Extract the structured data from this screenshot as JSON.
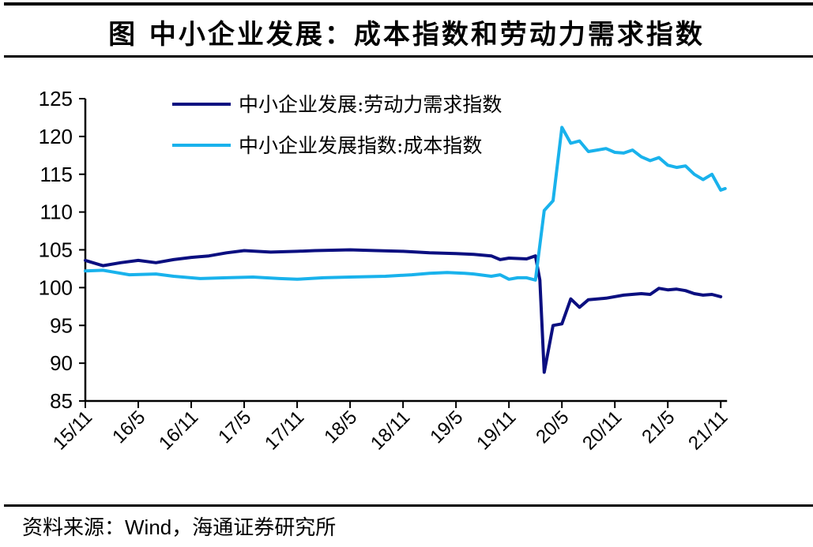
{
  "header": {
    "title": "图  中小企业发展：成本指数和劳动力需求指数"
  },
  "footer": {
    "source_prefix": "资料来源：",
    "source_en": "Wind",
    "source_suffix": "，海通证券研究所"
  },
  "colors": {
    "labor_demand": "#0b0f80",
    "cost": "#19b2ec",
    "axis": "#000000"
  },
  "chart_data": {
    "type": "line",
    "title": "中小企业发展：成本指数和劳动力需求指数",
    "xlabel": "",
    "ylabel": "",
    "ylim": [
      85,
      125
    ],
    "yticks": [
      85,
      90,
      95,
      100,
      105,
      110,
      115,
      120,
      125
    ],
    "x_tick_labels": [
      "15/11",
      "16/5",
      "16/11",
      "17/5",
      "17/11",
      "18/5",
      "18/11",
      "19/5",
      "19/11",
      "20/5",
      "20/11",
      "21/5",
      "21/11"
    ],
    "x_unit": "months since 2015-11 (0 = 15/11, 72 = 21/11)",
    "grid": false,
    "legend_position": "top-left inside",
    "series": [
      {
        "name": "中小企业发展:劳动力需求指数",
        "color": "#0b0f80",
        "points": [
          [
            0,
            103.6
          ],
          [
            2,
            102.9
          ],
          [
            4,
            103.3
          ],
          [
            6,
            103.6
          ],
          [
            8,
            103.3
          ],
          [
            10,
            103.7
          ],
          [
            12,
            104.0
          ],
          [
            14,
            104.2
          ],
          [
            16,
            104.6
          ],
          [
            18,
            104.9
          ],
          [
            21,
            104.7
          ],
          [
            24,
            104.8
          ],
          [
            26,
            104.9
          ],
          [
            30,
            105.0
          ],
          [
            33,
            104.9
          ],
          [
            36,
            104.8
          ],
          [
            39,
            104.6
          ],
          [
            42,
            104.5
          ],
          [
            44,
            104.4
          ],
          [
            46,
            104.2
          ],
          [
            47,
            103.7
          ],
          [
            48,
            103.9
          ],
          [
            50,
            103.8
          ],
          [
            51,
            104.2
          ],
          [
            51.5,
            101.0
          ],
          [
            52,
            88.8
          ],
          [
            53,
            95.0
          ],
          [
            54,
            95.2
          ],
          [
            55,
            98.5
          ],
          [
            56,
            97.4
          ],
          [
            57,
            98.4
          ],
          [
            59,
            98.6
          ],
          [
            61,
            99.0
          ],
          [
            63,
            99.2
          ],
          [
            64,
            99.1
          ],
          [
            65,
            99.9
          ],
          [
            66,
            99.7
          ],
          [
            67,
            99.8
          ],
          [
            68,
            99.6
          ],
          [
            69,
            99.2
          ],
          [
            70,
            99.0
          ],
          [
            71,
            99.1
          ],
          [
            72,
            98.8
          ]
        ]
      },
      {
        "name": "中小企业发展指数:成本指数",
        "color": "#19b2ec",
        "points": [
          [
            0,
            102.2
          ],
          [
            2,
            102.3
          ],
          [
            3,
            102.1
          ],
          [
            5,
            101.7
          ],
          [
            8,
            101.8
          ],
          [
            10,
            101.5
          ],
          [
            13,
            101.2
          ],
          [
            16,
            101.3
          ],
          [
            19,
            101.4
          ],
          [
            22,
            101.2
          ],
          [
            24,
            101.1
          ],
          [
            27,
            101.3
          ],
          [
            30,
            101.4
          ],
          [
            34,
            101.5
          ],
          [
            37,
            101.7
          ],
          [
            39,
            101.9
          ],
          [
            41,
            102.0
          ],
          [
            43,
            101.9
          ],
          [
            44,
            101.8
          ],
          [
            46,
            101.5
          ],
          [
            47,
            101.7
          ],
          [
            48,
            101.1
          ],
          [
            49,
            101.3
          ],
          [
            50,
            101.3
          ],
          [
            51,
            101.0
          ],
          [
            52,
            110.2
          ],
          [
            53,
            111.5
          ],
          [
            54,
            121.2
          ],
          [
            55,
            119.1
          ],
          [
            56,
            119.4
          ],
          [
            57,
            118.0
          ],
          [
            58,
            118.2
          ],
          [
            59,
            118.4
          ],
          [
            60,
            117.9
          ],
          [
            61,
            117.8
          ],
          [
            62,
            118.2
          ],
          [
            63,
            117.3
          ],
          [
            64,
            116.8
          ],
          [
            65,
            117.2
          ],
          [
            66,
            116.2
          ],
          [
            67,
            115.9
          ],
          [
            68,
            116.1
          ],
          [
            69,
            115.0
          ],
          [
            70,
            114.3
          ],
          [
            71,
            115.0
          ],
          [
            72,
            112.9
          ],
          [
            72.5,
            113.1
          ]
        ]
      }
    ]
  }
}
